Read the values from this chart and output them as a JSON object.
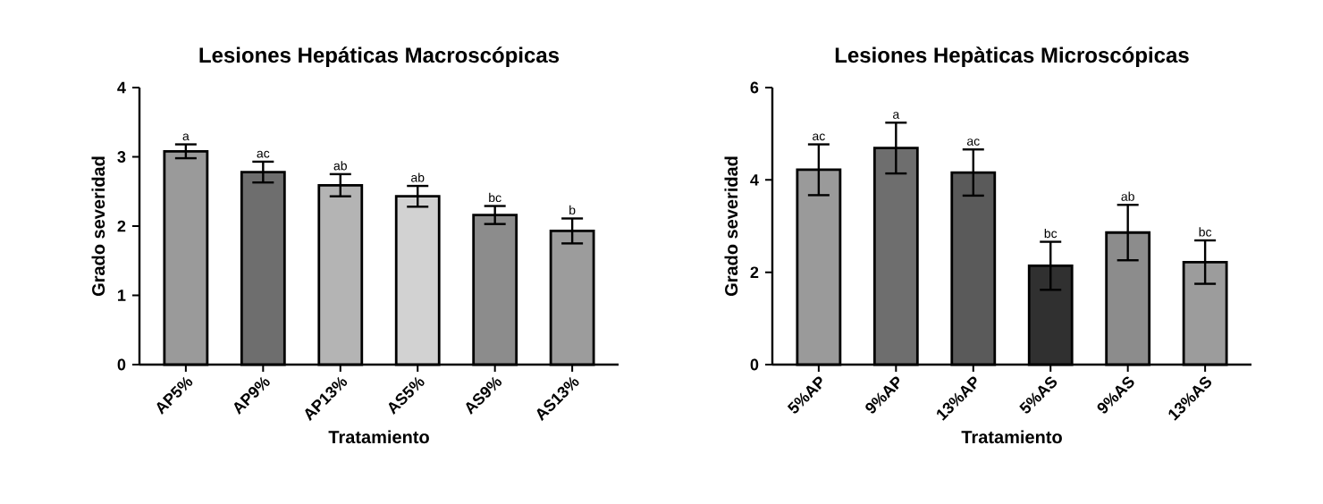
{
  "chart_data": [
    {
      "type": "bar",
      "title": "Lesiones Hepáticas Macroscópicas",
      "xlabel": "Tratamiento",
      "ylabel": "Grado severidad",
      "categories": [
        "AP5%",
        "AP9%",
        "AP13%",
        "AS5%",
        "AS9%",
        "AS13%"
      ],
      "values": [
        3.08,
        2.78,
        2.59,
        2.43,
        2.16,
        1.93
      ],
      "errors": [
        0.1,
        0.15,
        0.16,
        0.15,
        0.13,
        0.18
      ],
      "colors": [
        "#9a9a9a",
        "#6e6e6e",
        "#b4b4b4",
        "#d2d2d2",
        "#8c8c8c",
        "#9c9c9c"
      ],
      "ylim": [
        0,
        4
      ],
      "yticks": [
        0,
        1,
        2,
        3,
        4
      ],
      "annotations": [
        {
          "text": "a",
          "x": "AP5%",
          "y": 3.18
        },
        {
          "text": "ac",
          "x": "AP9%",
          "y": 2.93
        },
        {
          "text": "ab",
          "x": "AP13%",
          "y": 2.75
        },
        {
          "text": "ab",
          "x": "AS5%",
          "y": 2.58
        },
        {
          "text": "bc",
          "x": "AS9%",
          "y": 2.29
        },
        {
          "text": "b",
          "x": "AS13%",
          "y": 2.11
        }
      ]
    },
    {
      "type": "bar",
      "title": "Lesiones Hepàticas Microscópicas",
      "xlabel": "Tratamiento",
      "ylabel": "Grado severidad",
      "categories": [
        "5%AP",
        "9%AP",
        "13%AP",
        "5%AS",
        "9%AS",
        "13%AS"
      ],
      "values": [
        4.22,
        4.69,
        4.16,
        2.14,
        2.86,
        2.22
      ],
      "errors": [
        0.55,
        0.55,
        0.5,
        0.52,
        0.6,
        0.47
      ],
      "colors": [
        "#9a9a9a",
        "#6e6e6e",
        "#5a5a5a",
        "#303030",
        "#8c8c8c",
        "#9c9c9c"
      ],
      "ylim": [
        0,
        6
      ],
      "yticks": [
        0,
        2,
        4,
        6
      ],
      "annotations": [
        {
          "text": "ac",
          "x": "5%AP",
          "y": 4.77
        },
        {
          "text": "a",
          "x": "9%AP",
          "y": 5.24
        },
        {
          "text": "ac",
          "x": "13%AP",
          "y": 4.66
        },
        {
          "text": "bc",
          "x": "5%AS",
          "y": 2.66
        },
        {
          "text": "ab",
          "x": "9%AS",
          "y": 3.46
        },
        {
          "text": "bc",
          "x": "13%AS",
          "y": 2.69
        }
      ]
    }
  ]
}
